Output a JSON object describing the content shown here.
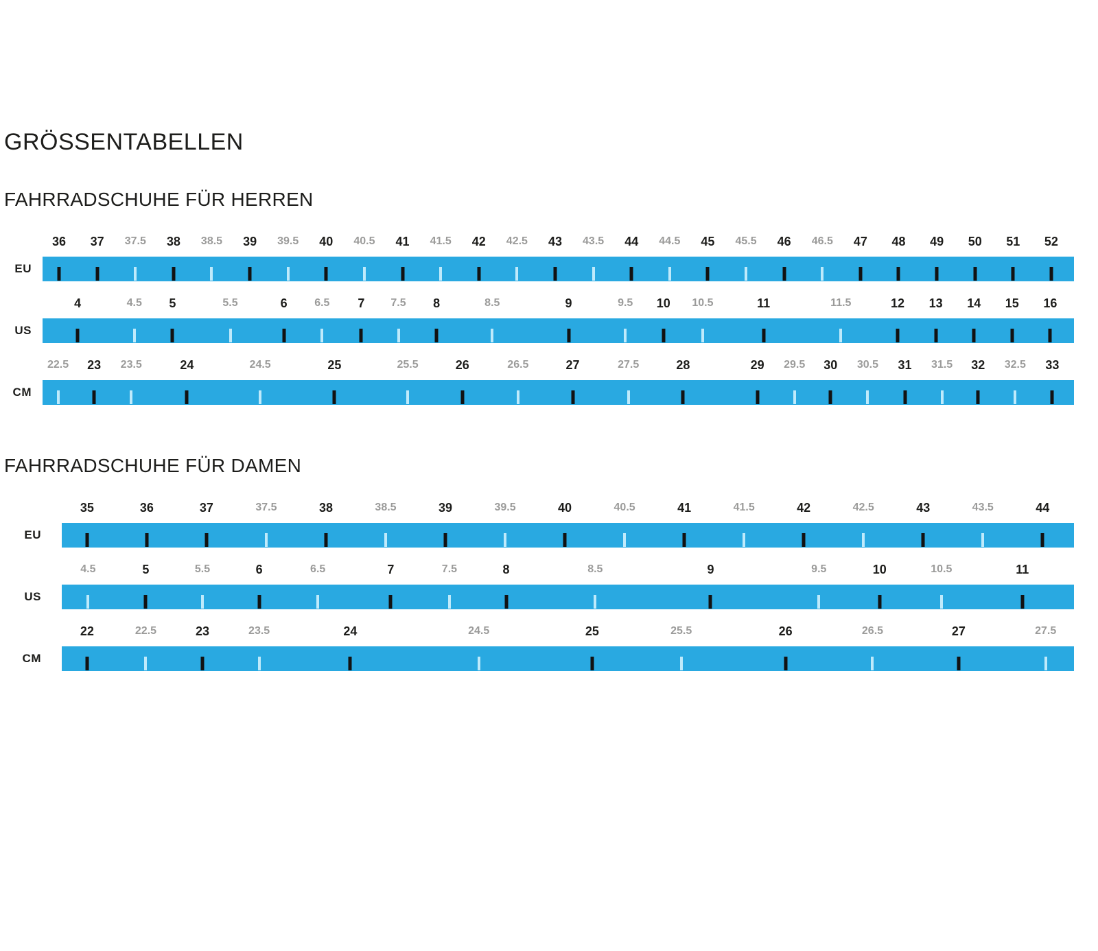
{
  "page": {
    "title": "GRÖSSENTABELLEN"
  },
  "colors": {
    "bar": "#29a9e1",
    "tick_dark": "#121212",
    "tick_light": "#bfeafb",
    "label_dark": "#1d1d1b",
    "label_gray": "#9b9b9a"
  },
  "chart_data": {
    "type": "table",
    "title": "GRÖSSENTABELLEN",
    "description": "Shoe size conversion rulers; major sizes in black with dark ticks, half sizes in gray with light ticks",
    "groups": [
      {
        "title": "FAHRRADSCHUHE FÜR HERREN",
        "scales": [
          {
            "unit": "EU",
            "ticks": [
              {
                "label": "36",
                "major": true,
                "pos": 1.6
              },
              {
                "label": "37",
                "major": true,
                "pos": 5.3
              },
              {
                "label": "37.5",
                "major": false,
                "pos": 9.0
              },
              {
                "label": "38",
                "major": true,
                "pos": 12.7
              },
              {
                "label": "38.5",
                "major": false,
                "pos": 16.4
              },
              {
                "label": "39",
                "major": true,
                "pos": 20.1
              },
              {
                "label": "39.5",
                "major": false,
                "pos": 23.8
              },
              {
                "label": "40",
                "major": true,
                "pos": 27.5
              },
              {
                "label": "40.5",
                "major": false,
                "pos": 31.2
              },
              {
                "label": "41",
                "major": true,
                "pos": 34.9
              },
              {
                "label": "41.5",
                "major": false,
                "pos": 38.6
              },
              {
                "label": "42",
                "major": true,
                "pos": 42.3
              },
              {
                "label": "42.5",
                "major": false,
                "pos": 46.0
              },
              {
                "label": "43",
                "major": true,
                "pos": 49.7
              },
              {
                "label": "43.5",
                "major": false,
                "pos": 53.4
              },
              {
                "label": "44",
                "major": true,
                "pos": 57.1
              },
              {
                "label": "44.5",
                "major": false,
                "pos": 60.8
              },
              {
                "label": "45",
                "major": true,
                "pos": 64.5
              },
              {
                "label": "45.5",
                "major": false,
                "pos": 68.2
              },
              {
                "label": "46",
                "major": true,
                "pos": 71.9
              },
              {
                "label": "46.5",
                "major": false,
                "pos": 75.6
              },
              {
                "label": "47",
                "major": true,
                "pos": 79.3
              },
              {
                "label": "48",
                "major": true,
                "pos": 83.0
              },
              {
                "label": "49",
                "major": true,
                "pos": 86.7
              },
              {
                "label": "50",
                "major": true,
                "pos": 90.4
              },
              {
                "label": "51",
                "major": true,
                "pos": 94.1
              },
              {
                "label": "52",
                "major": true,
                "pos": 97.8
              }
            ]
          },
          {
            "unit": "US",
            "ticks": [
              {
                "label": "4",
                "major": true,
                "pos": 3.4
              },
              {
                "label": "4.5",
                "major": false,
                "pos": 8.9
              },
              {
                "label": "5",
                "major": true,
                "pos": 12.6
              },
              {
                "label": "5.5",
                "major": false,
                "pos": 18.2
              },
              {
                "label": "6",
                "major": true,
                "pos": 23.4
              },
              {
                "label": "6.5",
                "major": false,
                "pos": 27.1
              },
              {
                "label": "7",
                "major": true,
                "pos": 30.9
              },
              {
                "label": "7.5",
                "major": false,
                "pos": 34.5
              },
              {
                "label": "8",
                "major": true,
                "pos": 38.2
              },
              {
                "label": "8.5",
                "major": false,
                "pos": 43.6
              },
              {
                "label": "9",
                "major": true,
                "pos": 51.0
              },
              {
                "label": "9.5",
                "major": false,
                "pos": 56.5
              },
              {
                "label": "10",
                "major": true,
                "pos": 60.2
              },
              {
                "label": "10.5",
                "major": false,
                "pos": 64.0
              },
              {
                "label": "11",
                "major": true,
                "pos": 69.9
              },
              {
                "label": "11.5",
                "major": false,
                "pos": 77.4
              },
              {
                "label": "12",
                "major": true,
                "pos": 82.9
              },
              {
                "label": "13",
                "major": true,
                "pos": 86.6
              },
              {
                "label": "14",
                "major": true,
                "pos": 90.3
              },
              {
                "label": "15",
                "major": true,
                "pos": 94.0
              },
              {
                "label": "16",
                "major": true,
                "pos": 97.7
              }
            ]
          },
          {
            "unit": "CM",
            "ticks": [
              {
                "label": "22.5",
                "major": false,
                "pos": 1.5
              },
              {
                "label": "23",
                "major": true,
                "pos": 5.0
              },
              {
                "label": "23.5",
                "major": false,
                "pos": 8.6
              },
              {
                "label": "24",
                "major": true,
                "pos": 14.0
              },
              {
                "label": "24.5",
                "major": false,
                "pos": 21.1
              },
              {
                "label": "25",
                "major": true,
                "pos": 28.3
              },
              {
                "label": "25.5",
                "major": false,
                "pos": 35.4
              },
              {
                "label": "26",
                "major": true,
                "pos": 40.7
              },
              {
                "label": "26.5",
                "major": false,
                "pos": 46.1
              },
              {
                "label": "27",
                "major": true,
                "pos": 51.4
              },
              {
                "label": "27.5",
                "major": false,
                "pos": 56.8
              },
              {
                "label": "28",
                "major": true,
                "pos": 62.1
              },
              {
                "label": "29",
                "major": true,
                "pos": 69.3
              },
              {
                "label": "29.5",
                "major": false,
                "pos": 72.9
              },
              {
                "label": "30",
                "major": true,
                "pos": 76.4
              },
              {
                "label": "30.5",
                "major": false,
                "pos": 80.0
              },
              {
                "label": "31",
                "major": true,
                "pos": 83.6
              },
              {
                "label": "31.5",
                "major": false,
                "pos": 87.2
              },
              {
                "label": "32",
                "major": true,
                "pos": 90.7
              },
              {
                "label": "32.5",
                "major": false,
                "pos": 94.3
              },
              {
                "label": "33",
                "major": true,
                "pos": 97.9
              }
            ]
          }
        ]
      },
      {
        "title": "FAHRRADSCHUHE FÜR DAMEN",
        "scales": [
          {
            "unit": "EU",
            "ticks": [
              {
                "label": "35",
                "major": true,
                "pos": 2.5
              },
              {
                "label": "36",
                "major": true,
                "pos": 8.4
              },
              {
                "label": "37",
                "major": true,
                "pos": 14.3
              },
              {
                "label": "37.5",
                "major": false,
                "pos": 20.2
              },
              {
                "label": "38",
                "major": true,
                "pos": 26.1
              },
              {
                "label": "38.5",
                "major": false,
                "pos": 32.0
              },
              {
                "label": "39",
                "major": true,
                "pos": 37.9
              },
              {
                "label": "39.5",
                "major": false,
                "pos": 43.8
              },
              {
                "label": "40",
                "major": true,
                "pos": 49.7
              },
              {
                "label": "40.5",
                "major": false,
                "pos": 55.6
              },
              {
                "label": "41",
                "major": true,
                "pos": 61.5
              },
              {
                "label": "41.5",
                "major": false,
                "pos": 67.4
              },
              {
                "label": "42",
                "major": true,
                "pos": 73.3
              },
              {
                "label": "42.5",
                "major": false,
                "pos": 79.2
              },
              {
                "label": "43",
                "major": true,
                "pos": 85.1
              },
              {
                "label": "43.5",
                "major": false,
                "pos": 91.0
              },
              {
                "label": "44",
                "major": true,
                "pos": 96.9
              }
            ]
          },
          {
            "unit": "US",
            "ticks": [
              {
                "label": "4.5",
                "major": false,
                "pos": 2.6
              },
              {
                "label": "5",
                "major": true,
                "pos": 8.3
              },
              {
                "label": "5.5",
                "major": false,
                "pos": 13.9
              },
              {
                "label": "6",
                "major": true,
                "pos": 19.5
              },
              {
                "label": "6.5",
                "major": false,
                "pos": 25.3
              },
              {
                "label": "7",
                "major": true,
                "pos": 32.5
              },
              {
                "label": "7.5",
                "major": false,
                "pos": 38.3
              },
              {
                "label": "8",
                "major": true,
                "pos": 43.9
              },
              {
                "label": "8.5",
                "major": false,
                "pos": 52.7
              },
              {
                "label": "9",
                "major": true,
                "pos": 64.1
              },
              {
                "label": "9.5",
                "major": false,
                "pos": 74.8
              },
              {
                "label": "10",
                "major": true,
                "pos": 80.8
              },
              {
                "label": "10.5",
                "major": false,
                "pos": 86.9
              },
              {
                "label": "11",
                "major": true,
                "pos": 94.9
              }
            ]
          },
          {
            "unit": "CM",
            "ticks": [
              {
                "label": "22",
                "major": true,
                "pos": 2.5
              },
              {
                "label": "22.5",
                "major": false,
                "pos": 8.3
              },
              {
                "label": "23",
                "major": true,
                "pos": 13.9
              },
              {
                "label": "23.5",
                "major": false,
                "pos": 19.5
              },
              {
                "label": "24",
                "major": true,
                "pos": 28.5
              },
              {
                "label": "24.5",
                "major": false,
                "pos": 41.2
              },
              {
                "label": "25",
                "major": true,
                "pos": 52.4
              },
              {
                "label": "25.5",
                "major": false,
                "pos": 61.2
              },
              {
                "label": "26",
                "major": true,
                "pos": 71.5
              },
              {
                "label": "26.5",
                "major": false,
                "pos": 80.1
              },
              {
                "label": "27",
                "major": true,
                "pos": 88.6
              },
              {
                "label": "27.5",
                "major": false,
                "pos": 97.2
              }
            ]
          }
        ]
      }
    ]
  }
}
